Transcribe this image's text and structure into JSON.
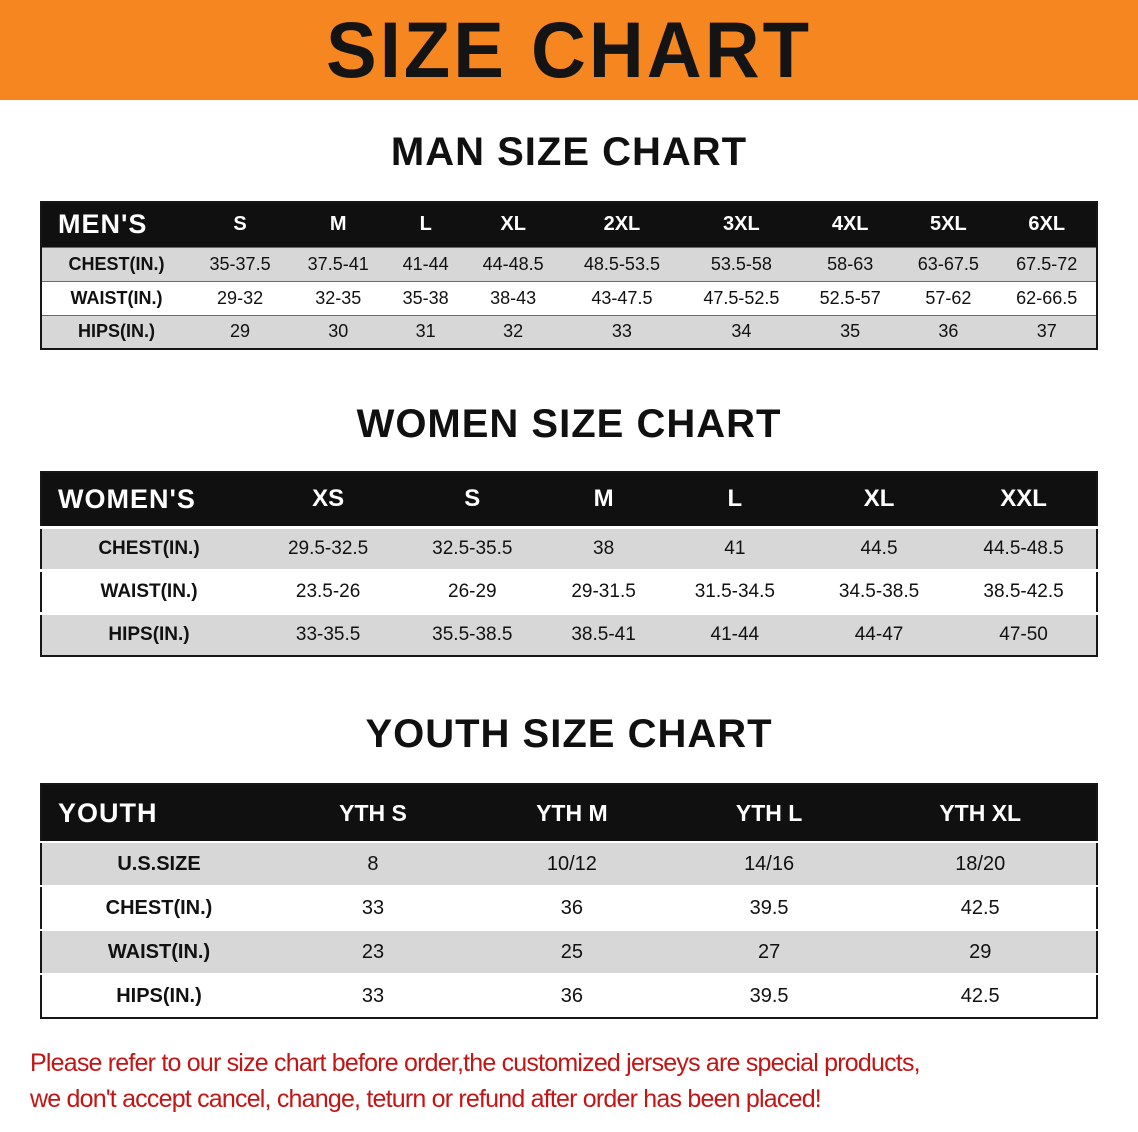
{
  "banner": {
    "title": "SIZE CHART"
  },
  "colors": {
    "banner_orange": "#f6861f",
    "header_black": "#101010",
    "row_gray": "#d7d7d7",
    "disclaimer_red": "#c41414"
  },
  "sections": [
    {
      "heading": "MAN SIZE CHART",
      "table": {
        "header": [
          "MEN'S",
          "S",
          "M",
          "L",
          "XL",
          "2XL",
          "3XL",
          "4XL",
          "5XL",
          "6XL"
        ],
        "rows": [
          [
            "CHEST(IN.)",
            "35-37.5",
            "37.5-41",
            "41-44",
            "44-48.5",
            "48.5-53.5",
            "53.5-58",
            "58-63",
            "63-67.5",
            "67.5-72"
          ],
          [
            "WAIST(IN.)",
            "29-32",
            "32-35",
            "35-38",
            "38-43",
            "43-47.5",
            "47.5-52.5",
            "52.5-57",
            "57-62",
            "62-66.5"
          ],
          [
            "HIPS(IN.)",
            "29",
            "30",
            "31",
            "32",
            "33",
            "34",
            "35",
            "36",
            "37"
          ]
        ]
      }
    },
    {
      "heading": "WOMEN SIZE CHART",
      "table": {
        "header": [
          "WOMEN'S",
          "XS",
          "S",
          "M",
          "L",
          "XL",
          "XXL"
        ],
        "rows": [
          [
            "CHEST(IN.)",
            "29.5-32.5",
            "32.5-35.5",
            "38",
            "41",
            "44.5",
            "44.5-48.5"
          ],
          [
            "WAIST(IN.)",
            "23.5-26",
            "26-29",
            "29-31.5",
            "31.5-34.5",
            "34.5-38.5",
            "38.5-42.5"
          ],
          [
            "HIPS(IN.)",
            "33-35.5",
            "35.5-38.5",
            "38.5-41",
            "41-44",
            "44-47",
            "47-50"
          ]
        ]
      }
    },
    {
      "heading": "YOUTH SIZE CHART",
      "table": {
        "header": [
          "YOUTH",
          "YTH S",
          "YTH M",
          "YTH L",
          "YTH XL"
        ],
        "rows": [
          [
            "U.S.SIZE",
            "8",
            "10/12",
            "14/16",
            "18/20"
          ],
          [
            "CHEST(IN.)",
            "33",
            "36",
            "39.5",
            "42.5"
          ],
          [
            "WAIST(IN.)",
            "23",
            "25",
            "27",
            "29"
          ],
          [
            "HIPS(IN.)",
            "33",
            "36",
            "39.5",
            "42.5"
          ]
        ]
      }
    }
  ],
  "disclaimer": {
    "line1": "Please refer to our size chart before order,the customized jerseys are special products,",
    "line2": "we don't accept cancel, change, teturn or refund after order has been placed!"
  }
}
